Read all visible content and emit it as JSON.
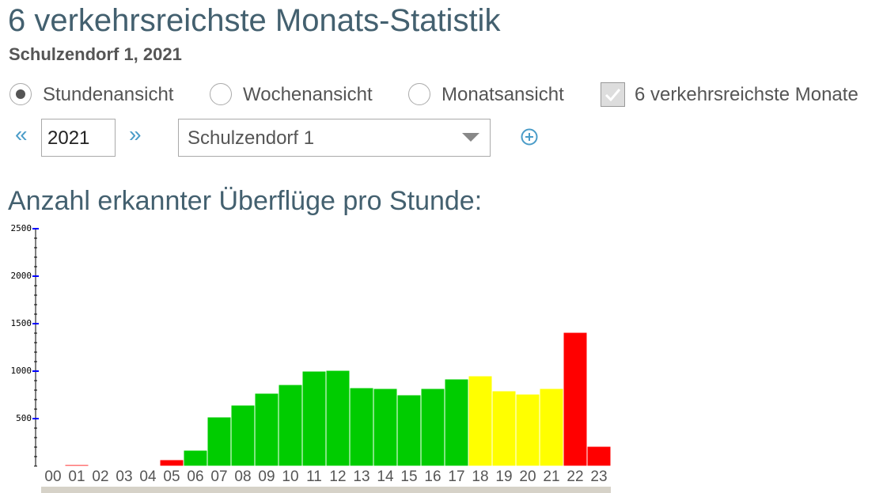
{
  "header": {
    "title": "6 verkehrsreichste Monats-Statistik",
    "subtitle": "Schulzendorf 1, 2021"
  },
  "view_options": [
    {
      "label": "Stundenansicht",
      "selected": true
    },
    {
      "label": "Wochenansicht",
      "selected": false
    },
    {
      "label": "Monatsansicht",
      "selected": false
    }
  ],
  "top_months": {
    "label": "6 verkehrsreichste Monate",
    "checked": true
  },
  "controls": {
    "prev": "«",
    "year": "2021",
    "next": "»",
    "station": "Schulzendorf 1"
  },
  "chart_data": {
    "type": "bar",
    "title": "Anzahl erkannter Überflüge pro Stunde:",
    "categories": [
      "00",
      "01",
      "02",
      "03",
      "04",
      "05",
      "06",
      "07",
      "08",
      "09",
      "10",
      "11",
      "12",
      "13",
      "14",
      "15",
      "16",
      "17",
      "18",
      "19",
      "20",
      "21",
      "22",
      "23"
    ],
    "values": [
      0,
      15,
      0,
      8,
      0,
      67,
      167,
      517,
      642,
      767,
      858,
      1000,
      1008,
      825,
      817,
      750,
      817,
      917,
      950,
      792,
      758,
      817,
      1408,
      208
    ],
    "colors": [
      "#ff0000",
      "#ff0000",
      "#ff0000",
      "#ff0000",
      "#ff0000",
      "#ff0000",
      "#00cc00",
      "#00cc00",
      "#00cc00",
      "#00cc00",
      "#00cc00",
      "#00cc00",
      "#00cc00",
      "#00cc00",
      "#00cc00",
      "#00cc00",
      "#00cc00",
      "#00cc00",
      "#ffff00",
      "#ffff00",
      "#ffff00",
      "#ffff00",
      "#ff0000",
      "#ff0000"
    ],
    "ylim": [
      0,
      2500
    ],
    "yticks": [
      500,
      1000,
      1500,
      2000,
      2500
    ]
  }
}
